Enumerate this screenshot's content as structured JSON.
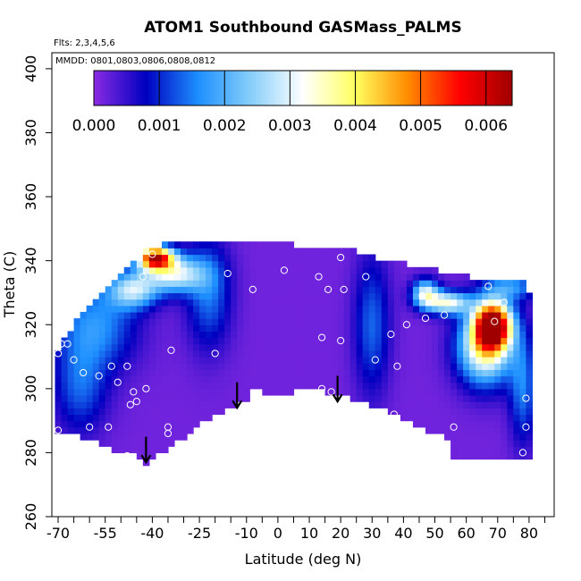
{
  "chart_data": {
    "type": "heatmap",
    "title": "ATOM1 Southbound GASMass_PALMS",
    "subtitle_flights": "Flts: 2,3,4,5,6",
    "subtitle_dates": "MMDD: 0801,0803,0806,0808,0812",
    "xlabel": "Latitude (deg N)",
    "ylabel": "Theta (C)",
    "xlim": [
      -72,
      88
    ],
    "ylim": [
      260,
      405
    ],
    "x_ticks": [
      -70,
      -55,
      -40,
      -25,
      -10,
      0,
      10,
      20,
      30,
      40,
      50,
      60,
      70,
      80
    ],
    "x_tick_labels": [
      "-70",
      "-55",
      "-40",
      "-25",
      "-10",
      "0",
      "10",
      "20",
      "30",
      "40",
      "50",
      "60",
      "70",
      "80"
    ],
    "x_minor_ticks": [
      -65,
      -60,
      -50,
      -45,
      -35,
      -30,
      -20,
      -15,
      -5,
      5,
      15,
      25,
      35,
      45,
      55,
      65,
      75,
      85
    ],
    "y_ticks": [
      260,
      280,
      300,
      320,
      340,
      360,
      380,
      400
    ],
    "y_tick_labels": [
      "260",
      "280",
      "300",
      "320",
      "340",
      "360",
      "380",
      "400"
    ],
    "colorbar": {
      "min": 0,
      "max": 0.0064,
      "ticks": [
        0.0,
        0.001,
        0.002,
        0.003,
        0.004,
        0.005,
        0.006
      ],
      "tick_labels": [
        "0.000",
        "0.001",
        "0.002",
        "0.003",
        "0.004",
        "0.005",
        "0.006"
      ],
      "colors": [
        "#8a2be2",
        "#0000c0",
        "#1e90ff",
        "#87cefa",
        "#ffffff",
        "#ffff60",
        "#ff8c00",
        "#ff0000",
        "#a00000"
      ]
    },
    "upper_boundary": [
      [
        -70,
        312
      ],
      [
        -68,
        316
      ],
      [
        -65,
        320
      ],
      [
        -60,
        326
      ],
      [
        -55,
        332
      ],
      [
        -48,
        338
      ],
      [
        -42,
        344
      ],
      [
        -30,
        346
      ],
      [
        -20,
        346
      ],
      [
        -5,
        346
      ],
      [
        5,
        345
      ],
      [
        15,
        344
      ],
      [
        25,
        343
      ],
      [
        35,
        340
      ],
      [
        45,
        338
      ],
      [
        55,
        336
      ],
      [
        65,
        334
      ],
      [
        72,
        333
      ],
      [
        78,
        333
      ],
      [
        80,
        330
      ]
    ],
    "lower_boundary": [
      [
        -70,
        287
      ],
      [
        -65,
        286
      ],
      [
        -60,
        284
      ],
      [
        -55,
        282
      ],
      [
        -50,
        280
      ],
      [
        -45,
        279
      ],
      [
        -42,
        277
      ],
      [
        -30,
        285
      ],
      [
        -20,
        292
      ],
      [
        -10,
        296
      ],
      [
        -8,
        300
      ],
      [
        0,
        298
      ],
      [
        10,
        300
      ],
      [
        20,
        298
      ],
      [
        30,
        295
      ],
      [
        40,
        291
      ],
      [
        50,
        286
      ],
      [
        55,
        284
      ],
      [
        56,
        278
      ],
      [
        70,
        278
      ],
      [
        80,
        278
      ],
      [
        80,
        297
      ]
    ],
    "field_blobs": [
      {
        "lat": 68.5,
        "theta": 320,
        "amp": 0.0062,
        "sx": 4.0,
        "sy": 5.0
      },
      {
        "lat": 66.0,
        "theta": 313,
        "amp": 0.0035,
        "sx": 6.0,
        "sy": 8.0
      },
      {
        "lat": 54.0,
        "theta": 327,
        "amp": 0.003,
        "sx": 5.0,
        "sy": 2.5
      },
      {
        "lat": 47.0,
        "theta": 330,
        "amp": 0.0027,
        "sx": 3.0,
        "sy": 3.0
      },
      {
        "lat": -39.0,
        "theta": 341,
        "amp": 0.0056,
        "sx": 4.0,
        "sy": 2.5
      },
      {
        "lat": -33.0,
        "theta": 336,
        "amp": 0.0028,
        "sx": 6.5,
        "sy": 4.0
      },
      {
        "lat": -46.0,
        "theta": 331,
        "amp": 0.0024,
        "sx": 5.5,
        "sy": 4.0
      },
      {
        "lat": -58.0,
        "theta": 320,
        "amp": 0.0015,
        "sx": 9.0,
        "sy": 10.0
      },
      {
        "lat": -63.0,
        "theta": 300,
        "amp": 0.0011,
        "sx": 6.0,
        "sy": 10.0
      },
      {
        "lat": -22.0,
        "theta": 330,
        "amp": 0.0013,
        "sx": 5.0,
        "sy": 12.0
      },
      {
        "lat": 30.0,
        "theta": 320,
        "amp": 0.0012,
        "sx": 4.0,
        "sy": 15.0
      },
      {
        "lat": 78.0,
        "theta": 300,
        "amp": 0.0013,
        "sx": 3.0,
        "sy": 12.0
      },
      {
        "lat": 74.0,
        "theta": 332,
        "amp": 0.0015,
        "sx": 6.0,
        "sy": 3.0
      }
    ],
    "sample_points": [
      [
        -70,
        311
      ],
      [
        -69,
        314
      ],
      [
        -67,
        314
      ],
      [
        -65,
        309
      ],
      [
        -62,
        305
      ],
      [
        -57,
        304
      ],
      [
        -53,
        307
      ],
      [
        -51,
        302
      ],
      [
        -48,
        307
      ],
      [
        -46,
        299
      ],
      [
        -45,
        296
      ],
      [
        -47,
        295
      ],
      [
        -42,
        300
      ],
      [
        -60,
        288
      ],
      [
        -54,
        288
      ],
      [
        -48,
        279
      ],
      [
        -35,
        288
      ],
      [
        -35,
        286
      ],
      [
        -34,
        312
      ],
      [
        -20,
        311
      ],
      [
        -40,
        342
      ],
      [
        -43,
        335
      ],
      [
        -16,
        336
      ],
      [
        -8,
        331
      ],
      [
        2,
        337
      ],
      [
        13,
        335
      ],
      [
        16,
        331
      ],
      [
        20,
        341
      ],
      [
        21,
        331
      ],
      [
        28,
        335
      ],
      [
        14,
        316
      ],
      [
        20,
        315
      ],
      [
        14,
        300
      ],
      [
        17,
        299
      ],
      [
        31,
        309
      ],
      [
        36,
        317
      ],
      [
        37,
        292
      ],
      [
        38,
        307
      ],
      [
        41,
        320
      ],
      [
        46,
        329
      ],
      [
        47,
        322
      ],
      [
        53,
        323
      ],
      [
        56,
        288
      ],
      [
        67,
        332
      ],
      [
        69,
        321
      ],
      [
        72,
        327
      ],
      [
        78,
        280
      ],
      [
        79,
        288
      ],
      [
        79,
        297
      ],
      [
        -70,
        287
      ]
    ],
    "arrows": [
      {
        "lat": -42,
        "theta_top": 285,
        "theta_bottom": 277
      },
      {
        "lat": -13,
        "theta_top": 302,
        "theta_bottom": 294
      },
      {
        "lat": 19,
        "theta_top": 304,
        "theta_bottom": 296
      }
    ]
  }
}
